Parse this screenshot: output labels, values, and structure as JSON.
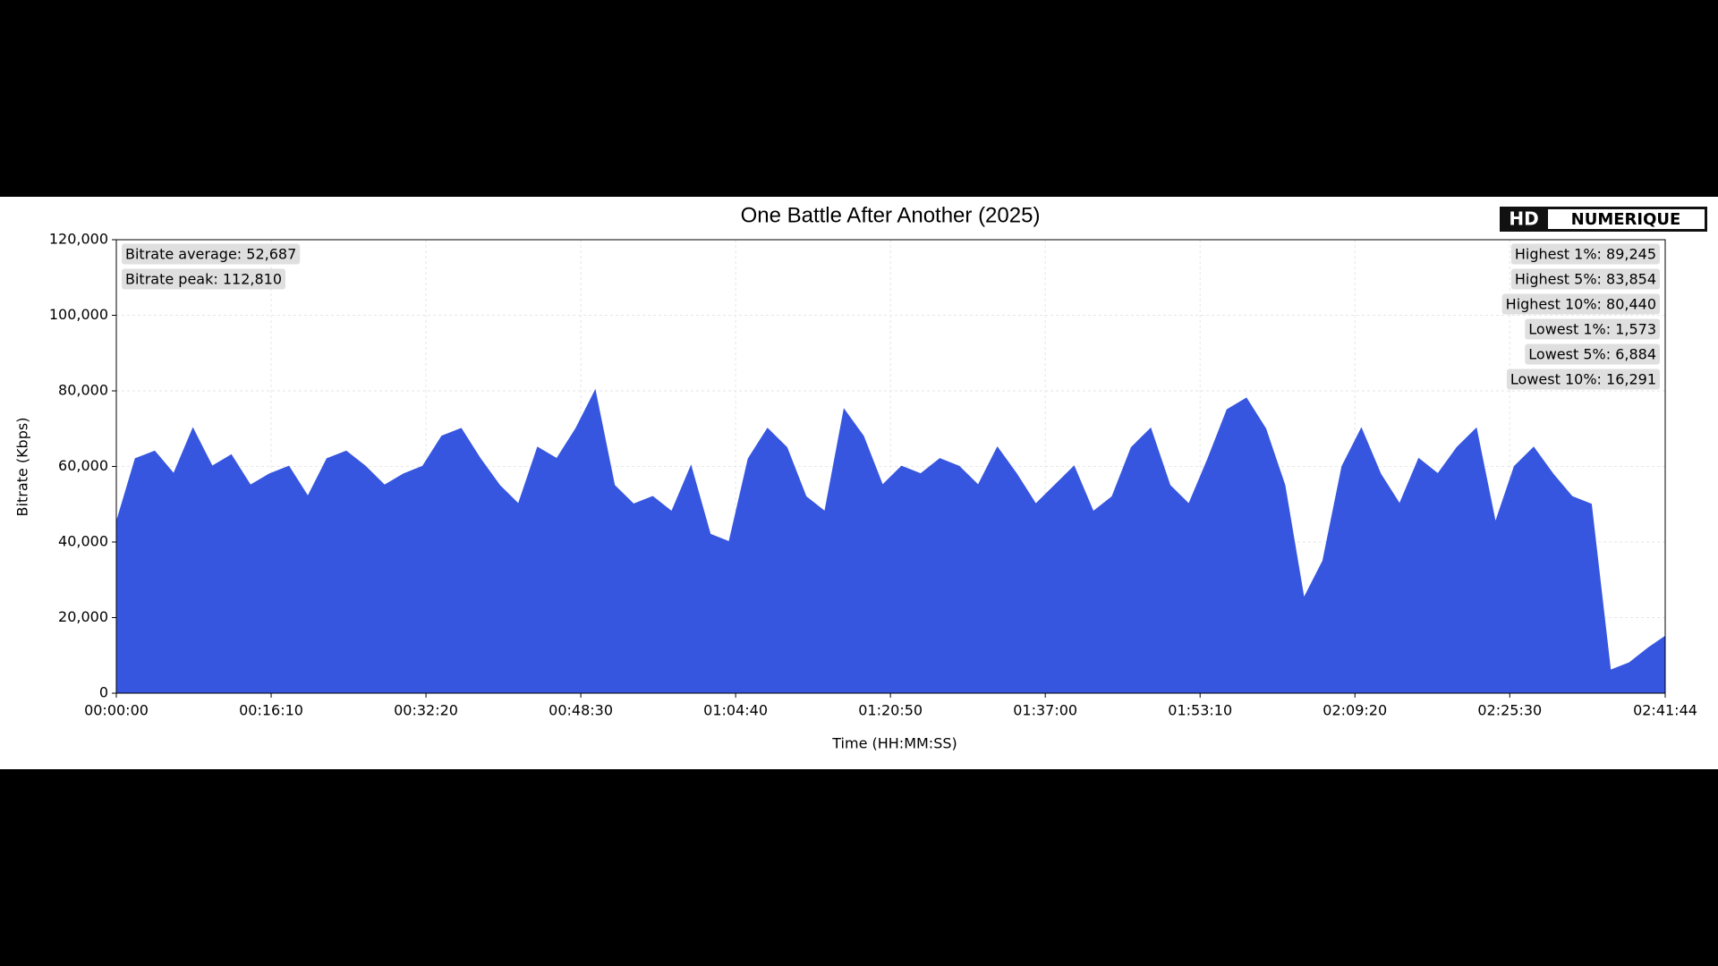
{
  "chart_data": {
    "type": "area",
    "title": "One Battle After Another (2025)",
    "logo": [
      "HD",
      "NUMERIQUE"
    ],
    "xlabel": "Time (HH:MM:SS)",
    "ylabel": "Bitrate (Kbps)",
    "color": "#3656e0",
    "grid": true,
    "xlim": [
      0,
      9704
    ],
    "ylim": [
      0,
      120000
    ],
    "xticks": [
      {
        "value": 0,
        "label": "00:00:00"
      },
      {
        "value": 970,
        "label": "00:16:10"
      },
      {
        "value": 1940,
        "label": "00:32:20"
      },
      {
        "value": 2910,
        "label": "00:48:30"
      },
      {
        "value": 3880,
        "label": "01:04:40"
      },
      {
        "value": 4850,
        "label": "01:20:50"
      },
      {
        "value": 5820,
        "label": "01:37:00"
      },
      {
        "value": 6790,
        "label": "01:53:10"
      },
      {
        "value": 7760,
        "label": "02:09:20"
      },
      {
        "value": 8730,
        "label": "02:25:30"
      },
      {
        "value": 9704,
        "label": "02:41:44"
      }
    ],
    "yticks": [
      0,
      {
        "value": 20000,
        "label": "20,000"
      },
      {
        "value": 40000,
        "label": "40,000"
      },
      {
        "value": 60000,
        "label": "60,000"
      },
      {
        "value": 80000,
        "label": "80,000"
      },
      {
        "value": 100000,
        "label": "100,000"
      },
      {
        "value": 120000,
        "label": "120,000"
      }
    ],
    "x": [
      0,
      120,
      240,
      360,
      480,
      600,
      720,
      840,
      960,
      1080,
      1200,
      1320,
      1440,
      1560,
      1680,
      1800,
      1920,
      2040,
      2160,
      2280,
      2400,
      2520,
      2640,
      2760,
      2880,
      3000,
      3120,
      3240,
      3360,
      3480,
      3600,
      3720,
      3840,
      3960,
      4080,
      4200,
      4320,
      4440,
      4560,
      4680,
      4800,
      4920,
      5040,
      5160,
      5280,
      5400,
      5520,
      5640,
      5760,
      5880,
      6000,
      6120,
      6240,
      6360,
      6480,
      6600,
      6720,
      6840,
      6960,
      7080,
      7200,
      7320,
      7440,
      7560,
      7680,
      7800,
      7920,
      8040,
      8160,
      8280,
      8400,
      8520,
      8640,
      8760,
      8880,
      9000,
      9120,
      9240,
      9360,
      9480,
      9600,
      9704
    ],
    "values": [
      45000,
      62000,
      64000,
      58000,
      70000,
      60000,
      63000,
      55000,
      58000,
      60000,
      52000,
      62000,
      64000,
      60000,
      55000,
      58000,
      60000,
      68000,
      70000,
      62000,
      55000,
      50000,
      65000,
      62000,
      70000,
      80000,
      55000,
      50000,
      52000,
      48000,
      60000,
      42000,
      40000,
      62000,
      70000,
      65000,
      52000,
      48000,
      75000,
      68000,
      55000,
      60000,
      58000,
      62000,
      60000,
      55000,
      65000,
      58000,
      50000,
      55000,
      60000,
      48000,
      52000,
      65000,
      70000,
      55000,
      50000,
      62000,
      75000,
      78000,
      70000,
      55000,
      25000,
      35000,
      60000,
      70000,
      58000,
      50000,
      62000,
      58000,
      65000,
      70000,
      45000,
      60000,
      65000,
      58000,
      52000,
      50000,
      6000,
      8000,
      12000,
      15000
    ],
    "annotations_left": [
      "Bitrate average: 52,687",
      "Bitrate peak: 112,810"
    ],
    "annotations_right": [
      "Highest 1%: 89,245",
      "Highest 5%: 83,854",
      "Highest 10%: 80,440",
      "Lowest 1%: 1,573",
      "Lowest 5%: 6,884",
      "Lowest 10%: 16,291"
    ]
  }
}
